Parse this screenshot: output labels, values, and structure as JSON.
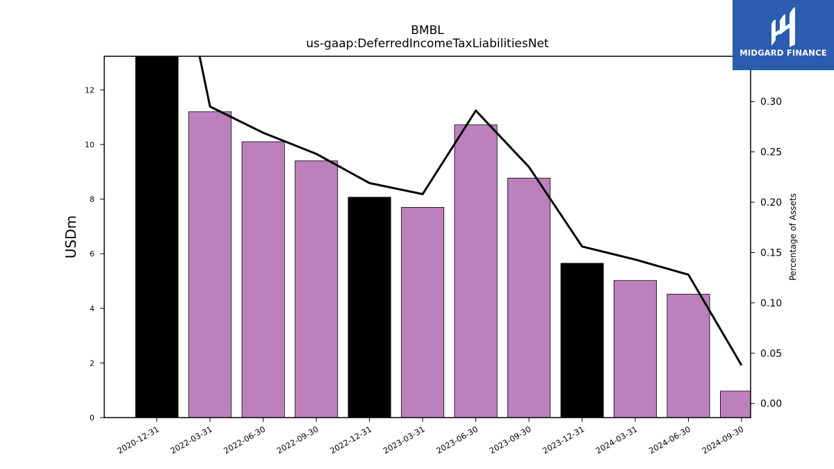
{
  "chart_data": {
    "type": "bar",
    "title": "BMBL",
    "subtitle": "us-gaap:DeferredIncomeTaxLiabilitiesNet",
    "ylabel": "USDm",
    "ylabel_right": "Percentage of Assets",
    "categories": [
      "2020-12-31",
      "2022-03-31",
      "2022-06-30",
      "2022-09-30",
      "2022-12-31",
      "2023-03-31",
      "2023-06-30",
      "2023-09-30",
      "2023-12-31",
      "2024-03-31",
      "2024-06-30",
      "2024-09-30"
    ],
    "values": [
      13.3,
      11.2,
      10.1,
      9.4,
      8.07,
      7.7,
      10.72,
      8.77,
      5.65,
      5.02,
      4.52,
      0.97
    ],
    "bar_colors": [
      "#000000",
      "#bc80bd",
      "#bc80bd",
      "#bc80bd",
      "#000000",
      "#bc80bd",
      "#bc80bd",
      "#bc80bd",
      "#000000",
      "#bc80bd",
      "#bc80bd",
      "#bc80bd"
    ],
    "line_series": {
      "name": "Percentage of Assets",
      "axis": "right",
      "values": [
        0.55,
        0.295,
        0.269,
        0.248,
        0.219,
        0.208,
        0.291,
        0.235,
        0.156,
        0.143,
        0.128,
        0.038
      ]
    },
    "ylim": [
      0,
      13.23
    ],
    "yticks": [
      0,
      2,
      4,
      6,
      8,
      10,
      12
    ],
    "ylim_right": [
      -0.014,
      0.345
    ],
    "yticks_right": [
      "0.00",
      "0.05",
      "0.10",
      "0.15",
      "0.20",
      "0.25",
      "0.30"
    ],
    "grid": false,
    "colors": {
      "bar_default": "#bc80bd",
      "bar_highlight": "#000000",
      "line": "#000000"
    }
  },
  "watermark": {
    "text": "MIDGARD FINANCE",
    "background": "#2b5cad"
  }
}
